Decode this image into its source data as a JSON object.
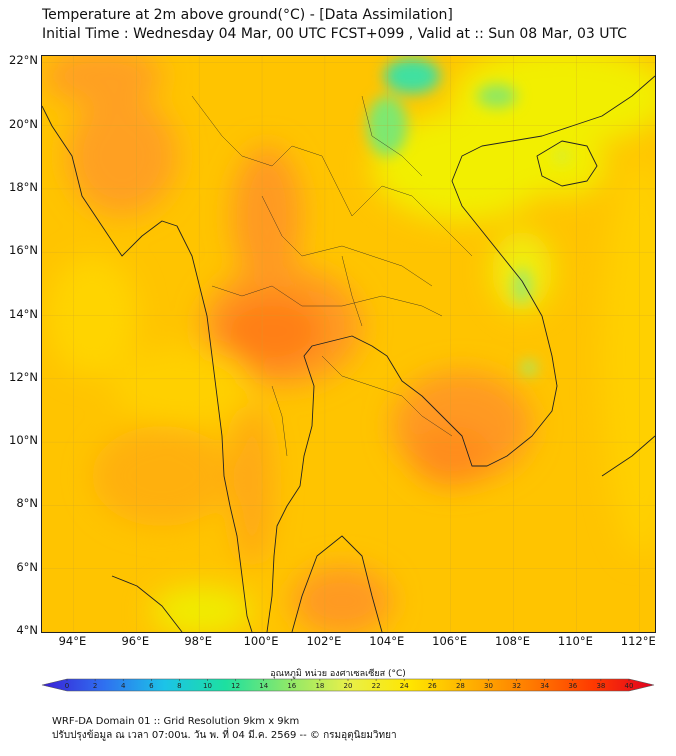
{
  "title": {
    "line1": "Temperature at 2m above ground(°C) - [Data Assimilation]",
    "line2": "Initial Time : Wednesday 04 Mar, 00 UTC FCST+099 , Valid at :: Sun 08 Mar, 03 UTC"
  },
  "axes": {
    "lat_labels": [
      "22°N",
      "20°N",
      "18°N",
      "16°N",
      "14°N",
      "12°N",
      "10°N",
      "8°N",
      "6°N",
      "4°N"
    ],
    "lon_labels": [
      "94°E",
      "96°E",
      "98°E",
      "100°E",
      "102°E",
      "104°E",
      "106°E",
      "108°E",
      "110°E",
      "112°E"
    ],
    "lat_range": [
      4,
      22.2
    ],
    "lon_range": [
      93,
      112.5
    ]
  },
  "colorbar": {
    "title": "อุณหภูมิ หน่วย องศาเซลเซียส (°C)",
    "tick_labels": [
      "0",
      "2",
      "4",
      "6",
      "8",
      "10",
      "12",
      "14",
      "16",
      "18",
      "20",
      "22",
      "24",
      "26",
      "28",
      "30",
      "32",
      "34",
      "36",
      "38",
      "40"
    ],
    "range": [
      0,
      40
    ],
    "colors": [
      "#3a1fd6",
      "#2f6ff0",
      "#1cc3e8",
      "#1de0a0",
      "#8be86a",
      "#e8f04a",
      "#ffe600",
      "#ffb000",
      "#ff7a00",
      "#ff3a00",
      "#e00020"
    ]
  },
  "footer": {
    "line1": "WRF-DA Domain 01 :: Grid Resolution 9km x 9km",
    "line2": "ปรับปรุงข้อมูล ณ เวลา 07:00น. วัน พ. ที่ 04 มี.ค. 2569 -- © กรมอุตุนิยมวิทยา"
  },
  "map_colors": {
    "base": "#ffc400",
    "hot": "#ff8a1c",
    "warm": "#ffa616",
    "cool": "#f4ec00",
    "cold": "#3ee0a0",
    "coast": "#222222"
  }
}
